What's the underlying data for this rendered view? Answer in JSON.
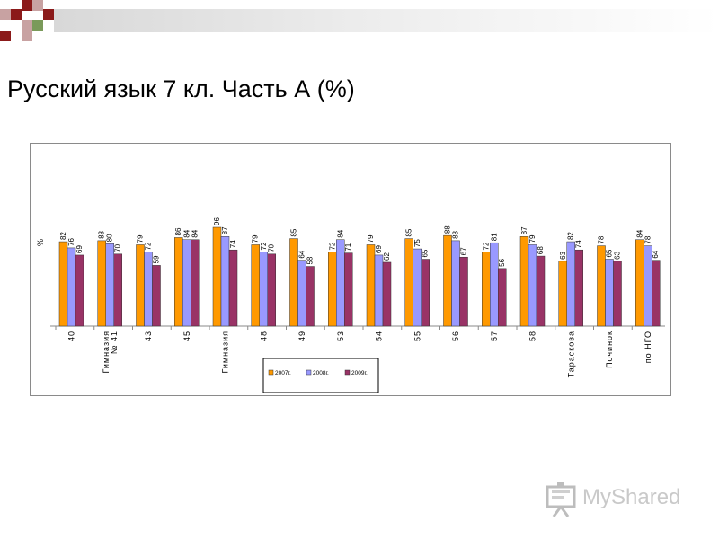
{
  "page": {
    "title": "Русский язык 7 кл. Часть А (%)"
  },
  "colors": {
    "series": [
      "#ff9900",
      "#9999ff",
      "#993366"
    ],
    "deco_dark": "#8b1a1a",
    "deco_light": "#c8a2a2",
    "deco_green": "#7a9a5a"
  },
  "watermark": {
    "text_main": "MyShared",
    "text_dot": "",
    "icon": "presentation-board-icon"
  },
  "chart_data": {
    "type": "bar",
    "ylabel": "%",
    "ylim": [
      0,
      100
    ],
    "grid": false,
    "legend_position": "bottom-center",
    "categories": [
      "40",
      "Гимназия № 41",
      "43",
      "45",
      "Гимназия",
      "48",
      "49",
      "53",
      "54",
      "55",
      "56",
      "57",
      "58",
      "Тараскова",
      "Починок",
      "по НГО"
    ],
    "category_lines": [
      [
        "40"
      ],
      [
        "Гимназия",
        "№ 41"
      ],
      [
        "43"
      ],
      [
        "45"
      ],
      [
        "Гимназия"
      ],
      [
        "48"
      ],
      [
        "49"
      ],
      [
        "53"
      ],
      [
        "54"
      ],
      [
        "55"
      ],
      [
        "56"
      ],
      [
        "57"
      ],
      [
        "58"
      ],
      [
        "Тараскова"
      ],
      [
        "Починок"
      ],
      [
        "по НГО"
      ]
    ],
    "series": [
      {
        "name": "2007г.",
        "values": [
          82,
          83,
          79,
          86,
          96,
          79,
          85,
          72,
          79,
          85,
          88,
          72,
          87,
          63,
          78,
          84
        ]
      },
      {
        "name": "2008г.",
        "values": [
          76,
          80,
          72,
          84,
          87,
          72,
          64,
          84,
          69,
          75,
          83,
          81,
          79,
          82,
          65,
          78
        ]
      },
      {
        "name": "2009г.",
        "values": [
          69,
          70,
          59,
          84,
          74,
          70,
          58,
          71,
          62,
          65,
          67,
          56,
          68,
          74,
          63,
          64
        ]
      }
    ]
  }
}
